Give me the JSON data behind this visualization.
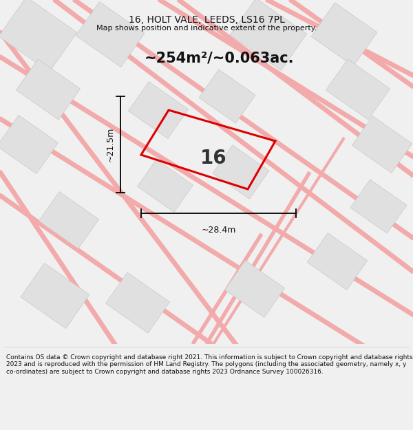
{
  "title": "16, HOLT VALE, LEEDS, LS16 7PL",
  "subtitle": "Map shows position and indicative extent of the property.",
  "area_text": "~254m²/~0.063ac.",
  "number_label": "16",
  "dim_width": "~28.4m",
  "dim_height": "~21.5m",
  "footer": "Contains OS data © Crown copyright and database right 2021. This information is subject to Crown copyright and database rights 2023 and is reproduced with the permission of HM Land Registry. The polygons (including the associated geometry, namely x, y co-ordinates) are subject to Crown copyright and database rights 2023 Ordnance Survey 100026316.",
  "bg_color": "#f0f0f0",
  "map_bg": "#ffffff",
  "road_color": "#f2aaaa",
  "building_color": "#e0e0e0",
  "building_edge": "#c8c8c8",
  "plot_color": "#dd0000",
  "title_fontsize": 10,
  "subtitle_fontsize": 8,
  "area_fontsize": 15,
  "number_fontsize": 20,
  "dim_fontsize": 9
}
